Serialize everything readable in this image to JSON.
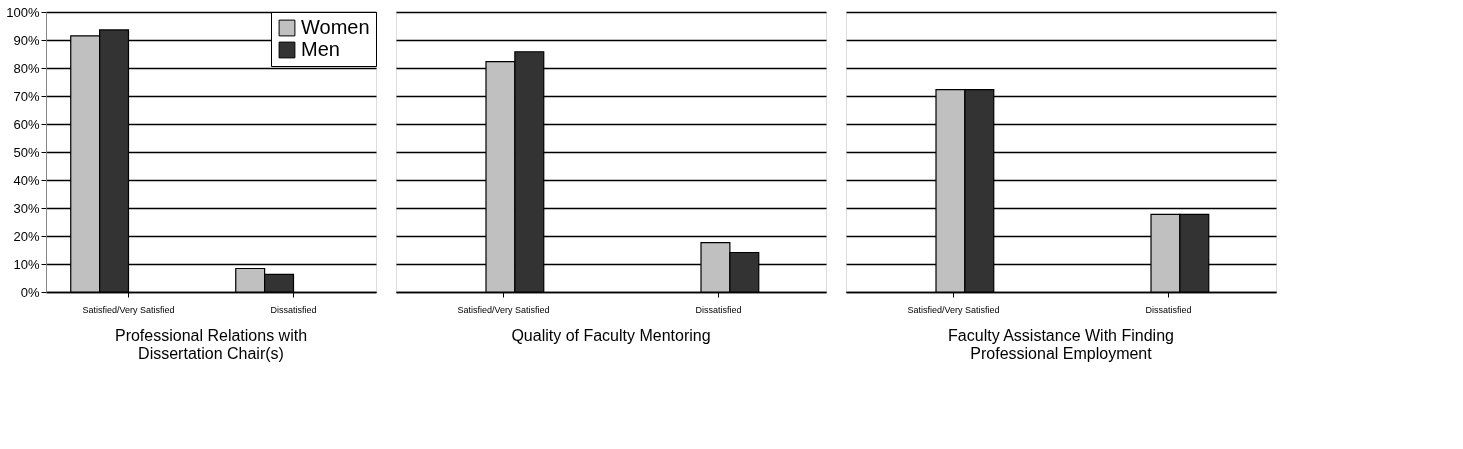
{
  "chart_data": [
    {
      "type": "bar",
      "title": "Professional Relations with Dissertation Chair(s)",
      "categories": [
        "Satisfied/Very Satisfied",
        "Dissatisfied"
      ],
      "series": [
        {
          "name": "Women",
          "color": "#c0c0c0",
          "values": [
            91.5,
            8.4
          ]
        },
        {
          "name": "Men",
          "color": "#333333",
          "values": [
            93.6,
            6.3
          ]
        }
      ],
      "ylim": [
        0,
        100
      ],
      "yticks": [
        {
          "value": 0,
          "label": "0%"
        },
        {
          "value": 10,
          "label": "10%"
        },
        {
          "value": 20,
          "label": "20%"
        },
        {
          "value": 30,
          "label": "30%"
        },
        {
          "value": 40,
          "label": "40%"
        },
        {
          "value": 50,
          "label": "50%"
        },
        {
          "value": 60,
          "label": "60%"
        },
        {
          "value": 70,
          "label": "70%"
        },
        {
          "value": 80,
          "label": "80%"
        },
        {
          "value": 90,
          "label": "90%"
        },
        {
          "value": 100,
          "label": "100%"
        }
      ],
      "grid": "y",
      "legend": "top right"
    },
    {
      "type": "bar",
      "title": "Quality of Faculty Mentoring",
      "categories": [
        "Satisfied/Very Satisfied",
        "Dissatisfied"
      ],
      "series": [
        {
          "color": "#c0c0c0",
          "values": [
            82.3,
            17.6
          ]
        },
        {
          "color": "#333333",
          "values": [
            85.8,
            14.1
          ]
        }
      ],
      "ylim": [
        0,
        100
      ],
      "yticks": [
        0,
        10,
        20,
        30,
        40,
        50,
        60,
        70,
        80,
        90,
        100
      ],
      "grid": "y",
      "tick_labels": "x"
    },
    {
      "type": "bar",
      "title": "Faculty Assistance With Finding Professional Employment",
      "categories": [
        "Satisfied/Very Satisfied",
        "Dissatisfied"
      ],
      "series": [
        {
          "color": "#c0c0c0",
          "values": [
            72.3,
            27.7
          ]
        },
        {
          "color": "#333333",
          "values": [
            72.3,
            27.7
          ]
        }
      ],
      "ylim": [
        0,
        100
      ],
      "yticks": [
        0,
        10,
        20,
        30,
        40,
        50,
        60,
        70,
        80,
        90,
        100
      ],
      "grid": "y",
      "tick_labels": "x"
    }
  ]
}
